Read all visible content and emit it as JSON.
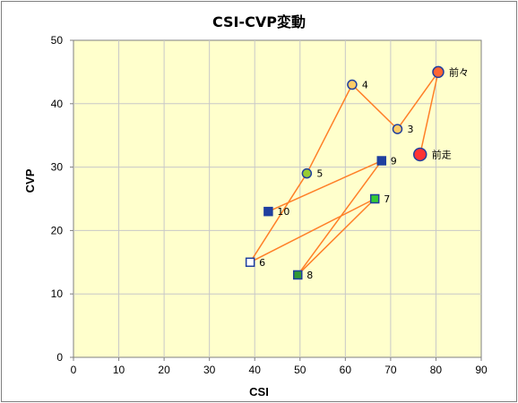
{
  "chart_data": {
    "type": "scatter",
    "title": "CSI-CVP変動",
    "xlabel": "CSI",
    "ylabel": "CVP",
    "xlim": [
      0,
      90
    ],
    "ylim": [
      0,
      50
    ],
    "xticks": [
      "0",
      "10",
      "20",
      "30",
      "40",
      "50",
      "60",
      "70",
      "80",
      "90"
    ],
    "yticks": [
      "0",
      "10",
      "20",
      "30",
      "40",
      "50"
    ],
    "grid": true,
    "colors": {
      "plot_bg": "#ffffcc",
      "grid": "#c8c8c8",
      "line": "#ff7f27",
      "square_dark": "#1f3f9f",
      "square_green": "#33cc33",
      "square_open": "#ffffff",
      "circle_yellow": "#ffcc66",
      "circle_green": "#99cc33",
      "circle_orange": "#ff6633",
      "circle_red": "#ff3333"
    },
    "points": [
      {
        "label": "10",
        "x": 43,
        "y": 23,
        "marker": "square",
        "fill": "#1f3f9f",
        "edge": "#1f3f9f"
      },
      {
        "label": "9",
        "x": 68,
        "y": 31,
        "marker": "square",
        "fill": "#1f3f9f",
        "edge": "#1f3f9f"
      },
      {
        "label": "8",
        "x": 49.5,
        "y": 13,
        "marker": "square",
        "fill": "#339933",
        "edge": "#1f3f9f"
      },
      {
        "label": "7",
        "x": 66.5,
        "y": 25,
        "marker": "square",
        "fill": "#33cc33",
        "edge": "#1f3f9f"
      },
      {
        "label": "6",
        "x": 39,
        "y": 15,
        "marker": "square",
        "fill": "#ffffff",
        "edge": "#1f3f9f"
      },
      {
        "label": "5",
        "x": 51.5,
        "y": 29,
        "marker": "circle",
        "fill": "#99cc33",
        "edge": "#1f3f9f",
        "r": 5
      },
      {
        "label": "4",
        "x": 61.5,
        "y": 43,
        "marker": "circle",
        "fill": "#ffcc66",
        "edge": "#1f3f9f",
        "r": 5
      },
      {
        "label": "3",
        "x": 71.5,
        "y": 36,
        "marker": "circle",
        "fill": "#ffcc66",
        "edge": "#1f3f9f",
        "r": 5
      },
      {
        "label": "前々",
        "x": 80.5,
        "y": 45,
        "marker": "circle",
        "fill": "#ff6633",
        "edge": "#1f3f9f",
        "r": 6
      },
      {
        "label": "前走",
        "x": 76.5,
        "y": 32,
        "marker": "circle",
        "fill": "#ff3333",
        "edge": "#1f3f9f",
        "r": 7
      }
    ],
    "path_order": [
      "10",
      "9",
      "8",
      "7",
      "6",
      "5",
      "4",
      "3",
      "前々",
      "前走"
    ]
  }
}
